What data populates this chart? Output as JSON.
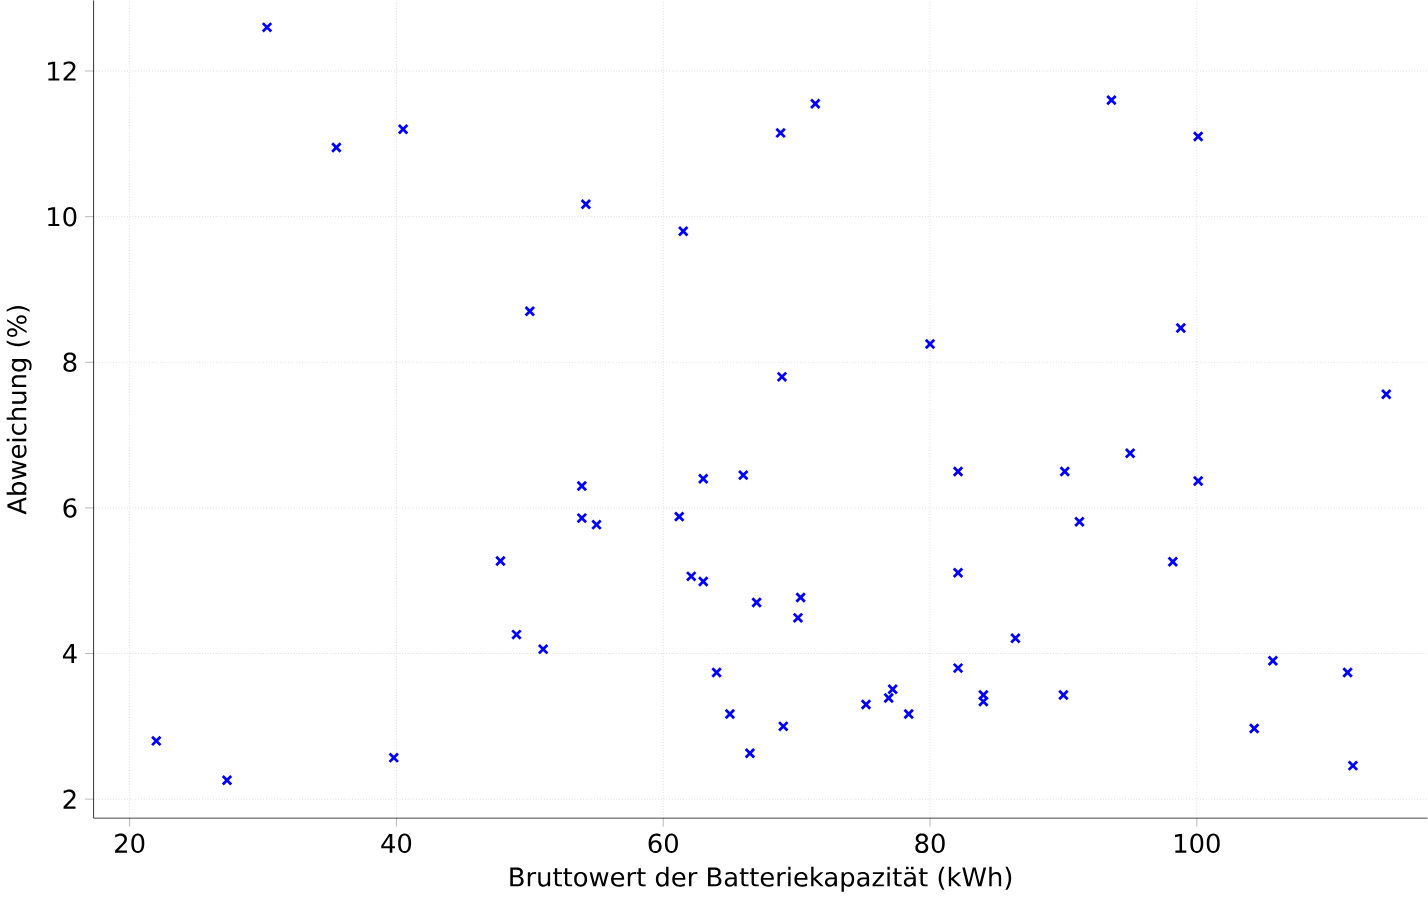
{
  "chart_data": {
    "type": "scatter",
    "xlabel": "Bruttowert der Batteriekapazität (kWh)",
    "ylabel": "Abweichung (%)",
    "xlim": [
      17.3,
      117.3
    ],
    "ylim": [
      1.74,
      12.97
    ],
    "xticks": [
      20,
      40,
      60,
      80,
      100
    ],
    "yticks": [
      2,
      4,
      6,
      8,
      10,
      12
    ],
    "grid": true,
    "marker": "cross",
    "series": [
      {
        "color": "#0000ff",
        "x": [
          30.3,
          35.5,
          40.5,
          54.2,
          61.5,
          50,
          68.8,
          71.4,
          93.6,
          100.1,
          68.9,
          80,
          98.8,
          114.2,
          53.9,
          63,
          66,
          82.1,
          90.1,
          95,
          100.1,
          47.8,
          53.9,
          55,
          61.2,
          62.1,
          63,
          67,
          70.3,
          70.1,
          82.1,
          91.2,
          98.2,
          49,
          51,
          64,
          65,
          66.5,
          69,
          75.2,
          76.9,
          77.2,
          78.4,
          82.1,
          84,
          84,
          86.4,
          90,
          105.7,
          104.3,
          111.3,
          111.7,
          22,
          27.3,
          39.8
        ],
        "values": [
          12.6,
          10.95,
          11.2,
          10.17,
          9.8,
          8.7,
          11.15,
          11.55,
          11.6,
          11.1,
          7.8,
          8.25,
          8.47,
          7.56,
          6.3,
          6.4,
          6.45,
          6.5,
          6.5,
          6.75,
          6.37,
          5.27,
          5.86,
          5.77,
          5.88,
          5.06,
          4.99,
          4.7,
          4.77,
          4.49,
          5.11,
          5.81,
          5.26,
          4.26,
          4.06,
          3.74,
          3.17,
          2.63,
          3.0,
          3.3,
          3.39,
          3.51,
          3.17,
          3.8,
          3.43,
          3.34,
          4.21,
          3.43,
          3.9,
          2.97,
          3.74,
          2.46,
          2.8,
          2.26,
          2.57
        ]
      }
    ]
  }
}
